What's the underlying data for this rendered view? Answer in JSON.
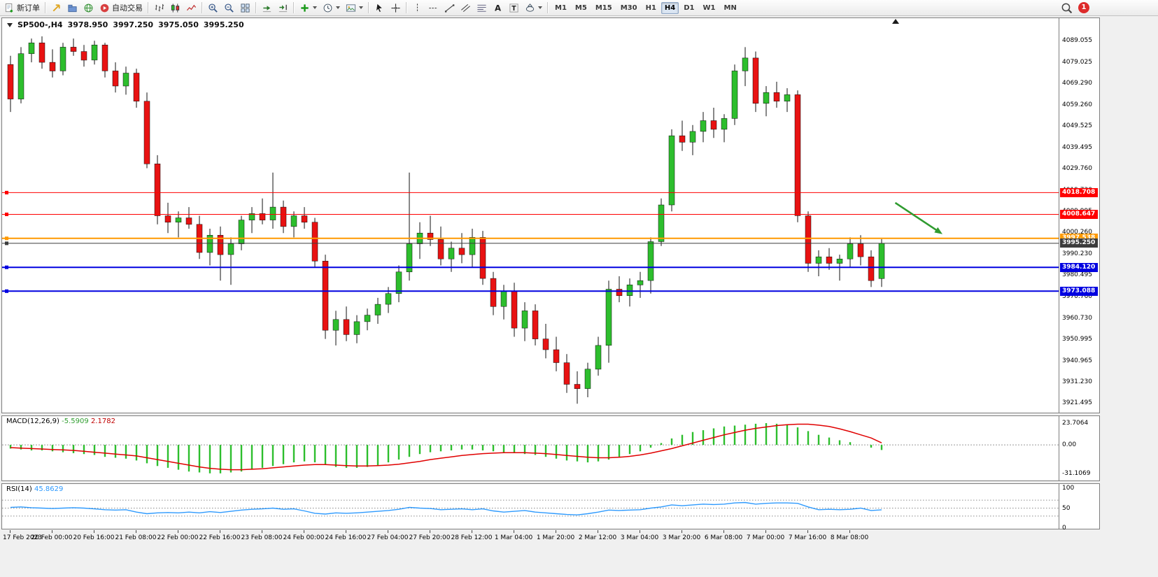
{
  "colors": {
    "bull": "#2DBE2D",
    "bear": "#E81212",
    "wick": "#101010",
    "macd_histogram": "#2DBE2D",
    "macd_signal": "#E00000",
    "rsi_line": "#2E9AFE",
    "arrow": "#2F9B2F",
    "line_red": "#FF0000",
    "line_orange": "#FF9900",
    "line_dark": "#3C3C3C",
    "line_blue": "#0000E0"
  },
  "toolbar": {
    "new_order": {
      "label": "新订单"
    },
    "auto_trading": {
      "label": "自动交易"
    },
    "groups": [
      {
        "name": "order-group",
        "items": [
          {
            "name": "new-order-button",
            "icon": "new-order",
            "label_key": "new_order"
          }
        ]
      },
      {
        "name": "services-group",
        "items": [
          {
            "name": "market-button",
            "icon": "gold-arrow"
          },
          {
            "name": "profiles-button",
            "icon": "profiles"
          },
          {
            "name": "community-button",
            "icon": "globe"
          },
          {
            "name": "auto-trading-button",
            "icon": "autotrade",
            "label_key": "auto_trading"
          }
        ]
      },
      {
        "name": "chart-type-group",
        "items": [
          {
            "name": "bar-chart-button",
            "icon": "bars"
          },
          {
            "name": "candle-chart-button",
            "icon": "candles"
          },
          {
            "name": "line-chart-button",
            "icon": "linechart"
          }
        ]
      },
      {
        "name": "zoom-group",
        "items": [
          {
            "name": "zoom-in-button",
            "icon": "zoom-in"
          },
          {
            "name": "zoom-out-button",
            "icon": "zoom-out"
          },
          {
            "name": "tile-windows-button",
            "icon": "tile"
          }
        ]
      },
      {
        "name": "scroll-group",
        "items": [
          {
            "name": "auto-scroll-button",
            "icon": "autoscroll"
          },
          {
            "name": "chart-shift-button",
            "icon": "shift"
          }
        ]
      },
      {
        "name": "insert-group",
        "items": [
          {
            "name": "indicators-button",
            "icon": "indicator-plus",
            "dropdown": true
          },
          {
            "name": "periods-button",
            "icon": "clock",
            "dropdown": true
          },
          {
            "name": "templates-button",
            "icon": "template",
            "dropdown": true
          }
        ]
      },
      {
        "name": "cursor-group",
        "items": [
          {
            "name": "cursor-button",
            "icon": "cursor"
          },
          {
            "name": "crosshair-button",
            "icon": "crosshair"
          }
        ]
      },
      {
        "name": "objects-group",
        "items": [
          {
            "name": "vertical-line-button",
            "icon": "vline"
          },
          {
            "name": "horizontal-line-button",
            "icon": "hline"
          },
          {
            "name": "trendline-button",
            "icon": "trendline"
          },
          {
            "name": "channel-button",
            "icon": "channel"
          },
          {
            "name": "fibonacci-button",
            "icon": "fibo"
          },
          {
            "name": "text-button",
            "icon": "text-a"
          },
          {
            "name": "label-button",
            "icon": "text-t"
          },
          {
            "name": "shapes-button",
            "icon": "shapes",
            "dropdown": true
          }
        ]
      }
    ],
    "timeframes": [
      "M1",
      "M5",
      "M15",
      "M30",
      "H1",
      "H4",
      "D1",
      "W1",
      "MN"
    ],
    "active_timeframe": "H4",
    "notification_badge": "1"
  },
  "chart": {
    "header": {
      "symbol": "SP500-,H4",
      "open": "3978.950",
      "high": "3997.250",
      "low": "3975.050",
      "close": "3995.250"
    }
  },
  "chart_data": [
    {
      "type": "candlestick",
      "title": "SP500-,H4",
      "ylim": [
        3918.0,
        4092.5
      ],
      "ohlc": [
        [
          4078,
          4082,
          4056,
          4062
        ],
        [
          4062,
          4086,
          4060,
          4083
        ],
        [
          4083,
          4090,
          4079,
          4088
        ],
        [
          4088,
          4091,
          4076,
          4079
        ],
        [
          4079,
          4085,
          4072,
          4075
        ],
        [
          4075,
          4088,
          4073,
          4086
        ],
        [
          4086,
          4090,
          4082,
          4084
        ],
        [
          4084,
          4087,
          4077,
          4080
        ],
        [
          4080,
          4089,
          4078,
          4087
        ],
        [
          4087,
          4088,
          4072,
          4075
        ],
        [
          4075,
          4079,
          4065,
          4068
        ],
        [
          4068,
          4077,
          4064,
          4074
        ],
        [
          4074,
          4076,
          4058,
          4061
        ],
        [
          4061,
          4065,
          4030,
          4032
        ],
        [
          4032,
          4036,
          4004,
          4008
        ],
        [
          4008,
          4014,
          4000,
          4005
        ],
        [
          4005,
          4010,
          3998,
          4007
        ],
        [
          4007,
          4012,
          4002,
          4004
        ],
        [
          4004,
          4008,
          3988,
          3991
        ],
        [
          3991,
          4002,
          3985,
          3999
        ],
        [
          3999,
          4003,
          3978,
          3990
        ],
        [
          3990,
          3998,
          3976,
          3995
        ],
        [
          3995,
          4008,
          3992,
          4006
        ],
        [
          4006,
          4012,
          4000,
          4009
        ],
        [
          4009,
          4016,
          4004,
          4006
        ],
        [
          4006,
          4028,
          4002,
          4012
        ],
        [
          4012,
          4015,
          4000,
          4003
        ],
        [
          4003,
          4010,
          3998,
          4008
        ],
        [
          4008,
          4012,
          4002,
          4005
        ],
        [
          4005,
          4007,
          3984,
          3987
        ],
        [
          3987,
          3990,
          3951,
          3955
        ],
        [
          3955,
          3964,
          3948,
          3960
        ],
        [
          3960,
          3966,
          3950,
          3953
        ],
        [
          3953,
          3962,
          3949,
          3959
        ],
        [
          3959,
          3965,
          3955,
          3962
        ],
        [
          3962,
          3970,
          3958,
          3967
        ],
        [
          3967,
          3975,
          3963,
          3972
        ],
        [
          3972,
          3985,
          3968,
          3982
        ],
        [
          3982,
          4028,
          3978,
          3995
        ],
        [
          3995,
          4005,
          3988,
          4000
        ],
        [
          4000,
          4008,
          3994,
          3997
        ],
        [
          3997,
          4003,
          3985,
          3988
        ],
        [
          3988,
          3996,
          3982,
          3993
        ],
        [
          3993,
          4000,
          3986,
          3990
        ],
        [
          3990,
          4002,
          3984,
          3998
        ],
        [
          3998,
          4001,
          3976,
          3979
        ],
        [
          3979,
          3982,
          3962,
          3966
        ],
        [
          3966,
          3976,
          3960,
          3973
        ],
        [
          3973,
          3977,
          3952,
          3956
        ],
        [
          3956,
          3968,
          3950,
          3964
        ],
        [
          3964,
          3967,
          3948,
          3951
        ],
        [
          3951,
          3958,
          3942,
          3946
        ],
        [
          3946,
          3952,
          3936,
          3940
        ],
        [
          3940,
          3944,
          3926,
          3930
        ],
        [
          3930,
          3936,
          3921,
          3928
        ],
        [
          3928,
          3940,
          3924,
          3937
        ],
        [
          3937,
          3952,
          3934,
          3948
        ],
        [
          3948,
          3978,
          3940,
          3974
        ],
        [
          3974,
          3980,
          3968,
          3971
        ],
        [
          3971,
          3979,
          3966,
          3976
        ],
        [
          3976,
          3982,
          3970,
          3978
        ],
        [
          3978,
          3998,
          3972,
          3996
        ],
        [
          3996,
          4016,
          3994,
          4013
        ],
        [
          4013,
          4048,
          4010,
          4045
        ],
        [
          4045,
          4052,
          4038,
          4042
        ],
        [
          4042,
          4050,
          4036,
          4047
        ],
        [
          4047,
          4056,
          4042,
          4052
        ],
        [
          4052,
          4058,
          4044,
          4048
        ],
        [
          4048,
          4055,
          4042,
          4053
        ],
        [
          4053,
          4078,
          4050,
          4075
        ],
        [
          4075,
          4086,
          4068,
          4081
        ],
        [
          4081,
          4084,
          4056,
          4060
        ],
        [
          4060,
          4068,
          4054,
          4065
        ],
        [
          4065,
          4070,
          4058,
          4061
        ],
        [
          4061,
          4067,
          4056,
          4064
        ],
        [
          4064,
          4066,
          4005,
          4008
        ],
        [
          4008,
          4010,
          3982,
          3986
        ],
        [
          3986,
          3992,
          3980,
          3989
        ],
        [
          3989,
          3993,
          3983,
          3986
        ],
        [
          3986,
          3990,
          3978,
          3988
        ],
        [
          3988,
          3998,
          3984,
          3995
        ],
        [
          3995,
          3999,
          3985,
          3989
        ],
        [
          3989,
          3992,
          3975,
          3978
        ],
        [
          3978.95,
          3997.25,
          3975.05,
          3995.25
        ]
      ],
      "price_ticks": [
        "4089.055",
        "4079.025",
        "4069.290",
        "4059.260",
        "4049.525",
        "4039.495",
        "4029.760",
        "4019.730",
        "4009.995",
        "4000.260",
        "3990.230",
        "3980.495",
        "3970.760",
        "3960.730",
        "3950.995",
        "3940.965",
        "3931.230",
        "3921.495"
      ],
      "hlines": [
        {
          "price": 4018.708,
          "label": "4018.708",
          "color": "#FF0000",
          "thickness": 1
        },
        {
          "price": 4008.647,
          "label": "4008.647",
          "color": "#FF0000",
          "thickness": 1
        },
        {
          "price": 3997.538,
          "label": "3997.538",
          "color": "#FF9900",
          "thickness": 2
        },
        {
          "price": 3995.25,
          "label": "3995.250",
          "color": "#3C3C3C",
          "thickness": 1
        },
        {
          "price": 3984.12,
          "label": "3984.120",
          "color": "#0000E0",
          "thickness": 2
        },
        {
          "price": 3973.088,
          "label": "3973.088",
          "color": "#0000E0",
          "thickness": 2
        }
      ],
      "annotation_arrow": {
        "bar_start": 84.3,
        "price_start": 4014.0,
        "bar_end": 88.8,
        "price_end": 3999.5
      },
      "time_labels": [
        {
          "bar": 0,
          "text": "17 Feb 2023"
        },
        {
          "bar": 4,
          "text": "20 Feb 00:00"
        },
        {
          "bar": 8,
          "text": "20 Feb 16:00"
        },
        {
          "bar": 12,
          "text": "21 Feb 08:00"
        },
        {
          "bar": 16,
          "text": "22 Feb 00:00"
        },
        {
          "bar": 20,
          "text": "22 Feb 16:00"
        },
        {
          "bar": 24,
          "text": "23 Feb 08:00"
        },
        {
          "bar": 28,
          "text": "24 Feb 00:00"
        },
        {
          "bar": 32,
          "text": "24 Feb 16:00"
        },
        {
          "bar": 36,
          "text": "27 Feb 04:00"
        },
        {
          "bar": 40,
          "text": "27 Feb 20:00"
        },
        {
          "bar": 44,
          "text": "28 Feb 12:00"
        },
        {
          "bar": 48,
          "text": "1 Mar 04:00"
        },
        {
          "bar": 52,
          "text": "1 Mar 20:00"
        },
        {
          "bar": 56,
          "text": "2 Mar 12:00"
        },
        {
          "bar": 60,
          "text": "3 Mar 04:00"
        },
        {
          "bar": 64,
          "text": "3 Mar 20:00"
        },
        {
          "bar": 68,
          "text": "6 Mar 08:00"
        },
        {
          "bar": 72,
          "text": "7 Mar 00:00"
        },
        {
          "bar": 76,
          "text": "7 Mar 16:00"
        },
        {
          "bar": 80,
          "text": "8 Mar 08:00"
        }
      ]
    },
    {
      "type": "bar",
      "name": "MACD",
      "label": "MACD(12,26,9)",
      "main_value": "-5.5909",
      "signal_value": "2.1782",
      "ylim": [
        -34,
        26
      ],
      "axis_ticks": [
        "23.7064",
        "0.00",
        "-31.1069"
      ],
      "histogram": [
        -4,
        -5,
        -6,
        -6,
        -7,
        -8,
        -9,
        -10,
        -11,
        -13,
        -14,
        -15,
        -17,
        -20,
        -23,
        -25,
        -27,
        -29,
        -30,
        -31,
        -31,
        -30,
        -29,
        -27,
        -25,
        -23,
        -21,
        -19,
        -18,
        -19,
        -22,
        -24,
        -25,
        -25,
        -24,
        -22,
        -19,
        -16,
        -13,
        -10,
        -8,
        -7,
        -6,
        -5,
        -5,
        -6,
        -7,
        -8,
        -9,
        -10,
        -11,
        -13,
        -15,
        -17,
        -18,
        -19,
        -18,
        -16,
        -13,
        -10,
        -7,
        -3,
        2,
        7,
        11,
        14,
        16,
        18,
        20,
        21,
        22,
        23,
        23.7,
        23,
        22,
        19,
        15,
        11,
        8,
        5,
        3,
        0,
        -3,
        -5.59
      ],
      "signal": [
        -3,
        -3.5,
        -4,
        -4.5,
        -5,
        -5.5,
        -6,
        -7,
        -8,
        -9,
        -10,
        -11,
        -12,
        -14,
        -16,
        -18,
        -20,
        -22,
        -24,
        -25.5,
        -26.5,
        -27,
        -27,
        -26.5,
        -26,
        -25,
        -24,
        -23,
        -22,
        -21.5,
        -21.5,
        -22,
        -22.5,
        -23,
        -23,
        -22.5,
        -22,
        -21,
        -19.5,
        -18,
        -16,
        -14.5,
        -13,
        -11.5,
        -10.5,
        -9.5,
        -9,
        -8.5,
        -8.5,
        -8.5,
        -9,
        -9.5,
        -10.5,
        -11.5,
        -12.5,
        -13.5,
        -14,
        -14,
        -13.5,
        -12.5,
        -11,
        -9,
        -6.5,
        -4,
        -1,
        2,
        5,
        8,
        11,
        13.5,
        16,
        18,
        19.5,
        21,
        22,
        22.5,
        22.5,
        21.5,
        20,
        17.5,
        14.5,
        11,
        7.5,
        2.18
      ]
    },
    {
      "type": "line",
      "name": "RSI",
      "label": "RSI(14)",
      "value": "45.8629",
      "ylim": [
        0,
        100
      ],
      "axis_ticks": [
        "100",
        "50",
        "0"
      ],
      "levels": [
        70,
        50,
        30
      ],
      "values": [
        52,
        53,
        51,
        50,
        49,
        50,
        51,
        50,
        48,
        46,
        45,
        46,
        40,
        36,
        38,
        39,
        38,
        40,
        38,
        41,
        39,
        42,
        45,
        47,
        48,
        50,
        47,
        48,
        43,
        37,
        35,
        38,
        37,
        38,
        40,
        42,
        44,
        47,
        52,
        50,
        49,
        46,
        47,
        48,
        46,
        48,
        43,
        40,
        42,
        44,
        40,
        38,
        36,
        34,
        33,
        36,
        40,
        45,
        44,
        45,
        46,
        50,
        53,
        58,
        56,
        58,
        60,
        59,
        60,
        63,
        64,
        60,
        62,
        63,
        63,
        62,
        53,
        46,
        47,
        46,
        47,
        50,
        44,
        45.86
      ]
    }
  ]
}
